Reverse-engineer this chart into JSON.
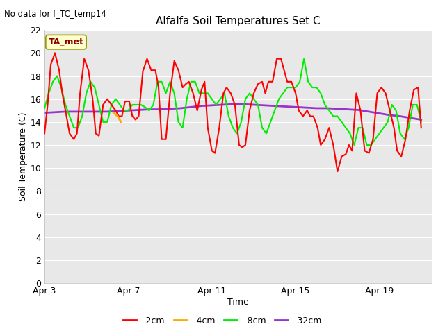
{
  "title": "Alfalfa Soil Temperatures Set C",
  "subtitle": "No data for f_TC_temp14",
  "xlabel": "Time",
  "ylabel": "Soil Temperature (C)",
  "ylim": [
    0,
    22
  ],
  "yticks": [
    0,
    2,
    4,
    6,
    8,
    10,
    12,
    14,
    16,
    18,
    20,
    22
  ],
  "xtick_labels": [
    "Apr 3",
    "Apr 7",
    "Apr 11",
    "Apr 15",
    "Apr 19"
  ],
  "fig_bg_color": "#ffffff",
  "plot_bg_color": "#e8e8e8",
  "grid_color": "#ffffff",
  "ta_met_box_color": "#ffffcc",
  "ta_met_box_edge": "#999900",
  "ta_met_text_color": "#880000",
  "legend_items": [
    {
      "label": "-2cm",
      "color": "#ff0000"
    },
    {
      "label": "-4cm",
      "color": "#ffaa00"
    },
    {
      "label": "-8cm",
      "color": "#00ee00"
    },
    {
      "label": "-32cm",
      "color": "#9933cc"
    }
  ],
  "series_neg2cm": {
    "color": "#ff0000",
    "lw": 1.5,
    "x": [
      3.0,
      3.15,
      3.3,
      3.5,
      3.7,
      3.85,
      4.05,
      4.2,
      4.4,
      4.55,
      4.7,
      4.9,
      5.1,
      5.3,
      5.45,
      5.6,
      5.8,
      6.0,
      6.2,
      6.4,
      6.55,
      6.7,
      6.85,
      7.05,
      7.2,
      7.35,
      7.5,
      7.7,
      7.9,
      8.1,
      8.3,
      8.45,
      8.6,
      8.8,
      9.0,
      9.2,
      9.4,
      9.6,
      9.75,
      9.9,
      10.1,
      10.3,
      10.5,
      10.65,
      10.8,
      11.0,
      11.15,
      11.35,
      11.55,
      11.7,
      11.9,
      12.1,
      12.3,
      12.45,
      12.6,
      12.8,
      13.0,
      13.2,
      13.4,
      13.55,
      13.7,
      13.9,
      14.1,
      14.3,
      14.45,
      14.6,
      14.8,
      15.0,
      15.15,
      15.35,
      15.55,
      15.7,
      15.85,
      16.05,
      16.2,
      16.4,
      16.6,
      16.8,
      17.0,
      17.2,
      17.4,
      17.55,
      17.7,
      17.9,
      18.1,
      18.3,
      18.5,
      18.7,
      18.9,
      19.1,
      19.3,
      19.5,
      19.7,
      19.85,
      20.05,
      20.25,
      20.45,
      20.65,
      20.85,
      21.0
    ],
    "y": [
      13.0,
      15.5,
      19.0,
      20.0,
      18.5,
      16.5,
      14.5,
      13.0,
      12.5,
      13.0,
      16.5,
      19.5,
      18.5,
      16.0,
      13.0,
      12.8,
      15.5,
      16.0,
      15.5,
      15.0,
      14.5,
      14.5,
      15.8,
      15.8,
      14.5,
      14.2,
      14.5,
      18.4,
      19.5,
      18.5,
      18.5,
      17.0,
      12.5,
      12.5,
      16.5,
      19.3,
      18.5,
      17.0,
      17.3,
      17.5,
      16.5,
      15.0,
      16.8,
      17.5,
      13.5,
      11.5,
      11.3,
      13.5,
      16.5,
      17.0,
      16.5,
      15.5,
      12.0,
      11.8,
      12.0,
      15.0,
      16.5,
      17.3,
      17.5,
      16.5,
      17.5,
      17.5,
      19.5,
      19.5,
      18.5,
      17.5,
      17.5,
      16.5,
      15.0,
      14.5,
      15.0,
      14.5,
      14.5,
      13.5,
      12.0,
      12.5,
      13.5,
      12.0,
      9.7,
      11.0,
      11.2,
      12.0,
      11.5,
      16.5,
      15.0,
      11.5,
      11.3,
      12.5,
      16.5,
      17.0,
      16.5,
      15.0,
      13.5,
      11.5,
      11.0,
      12.5,
      15.0,
      16.8,
      17.0,
      13.5
    ]
  },
  "series_neg4cm": {
    "color": "#ffaa00",
    "lw": 2.0,
    "x": [
      6.3,
      6.5,
      6.65
    ],
    "y": [
      14.8,
      14.5,
      14.0
    ]
  },
  "series_neg8cm": {
    "color": "#00ee00",
    "lw": 1.5,
    "x": [
      3.0,
      3.2,
      3.4,
      3.6,
      3.8,
      4.0,
      4.2,
      4.4,
      4.6,
      4.8,
      5.0,
      5.2,
      5.4,
      5.6,
      5.8,
      6.0,
      6.2,
      6.4,
      6.6,
      6.8,
      7.0,
      7.2,
      7.4,
      7.6,
      7.8,
      8.0,
      8.2,
      8.4,
      8.6,
      8.8,
      9.0,
      9.2,
      9.4,
      9.6,
      9.8,
      10.0,
      10.2,
      10.4,
      10.6,
      10.8,
      11.0,
      11.2,
      11.4,
      11.6,
      11.8,
      12.0,
      12.2,
      12.4,
      12.6,
      12.8,
      13.0,
      13.2,
      13.4,
      13.6,
      13.8,
      14.0,
      14.2,
      14.4,
      14.6,
      14.8,
      15.0,
      15.2,
      15.4,
      15.6,
      15.8,
      16.0,
      16.2,
      16.4,
      16.6,
      16.8,
      17.0,
      17.2,
      17.4,
      17.6,
      17.8,
      18.0,
      18.2,
      18.4,
      18.6,
      18.8,
      19.0,
      19.2,
      19.4,
      19.6,
      19.8,
      20.0,
      20.2,
      20.4,
      20.6,
      20.8,
      21.0
    ],
    "y": [
      15.2,
      16.5,
      17.5,
      18.0,
      17.0,
      15.5,
      14.5,
      13.5,
      13.5,
      14.5,
      16.5,
      17.5,
      17.0,
      15.5,
      14.0,
      14.0,
      15.5,
      16.0,
      15.5,
      15.0,
      15.0,
      15.5,
      15.5,
      15.5,
      15.3,
      15.0,
      15.5,
      17.5,
      17.5,
      16.5,
      17.5,
      16.5,
      14.0,
      13.5,
      16.0,
      17.5,
      17.5,
      16.5,
      16.5,
      16.5,
      16.0,
      15.5,
      16.0,
      16.5,
      14.5,
      13.5,
      13.0,
      14.0,
      16.0,
      16.5,
      16.0,
      15.5,
      13.5,
      13.0,
      14.0,
      15.0,
      16.0,
      16.5,
      17.0,
      17.0,
      17.0,
      17.5,
      19.5,
      17.5,
      17.0,
      17.0,
      16.5,
      15.5,
      15.0,
      14.5,
      14.5,
      14.0,
      13.5,
      13.0,
      12.0,
      13.5,
      13.5,
      12.0,
      12.0,
      12.5,
      13.0,
      13.5,
      14.0,
      15.5,
      15.0,
      13.0,
      12.5,
      13.5,
      15.5,
      15.5,
      14.0
    ]
  },
  "series_neg32cm": {
    "color": "#9933cc",
    "lw": 2.0,
    "x": [
      3.0,
      3.5,
      4.0,
      4.5,
      5.0,
      5.5,
      6.0,
      6.5,
      7.0,
      7.5,
      8.0,
      8.5,
      9.0,
      9.5,
      10.0,
      10.5,
      11.0,
      11.5,
      12.0,
      12.5,
      13.0,
      13.5,
      14.0,
      14.5,
      15.0,
      15.5,
      16.0,
      16.5,
      17.0,
      17.5,
      18.0,
      18.5,
      19.0,
      19.5,
      20.0,
      20.5,
      21.0
    ],
    "y": [
      14.8,
      14.85,
      14.9,
      14.9,
      14.9,
      14.9,
      14.9,
      14.95,
      15.0,
      15.05,
      15.1,
      15.1,
      15.15,
      15.2,
      15.3,
      15.4,
      15.45,
      15.5,
      15.55,
      15.55,
      15.5,
      15.45,
      15.4,
      15.35,
      15.3,
      15.25,
      15.2,
      15.2,
      15.15,
      15.1,
      15.05,
      14.9,
      14.75,
      14.6,
      14.5,
      14.35,
      14.2
    ]
  }
}
